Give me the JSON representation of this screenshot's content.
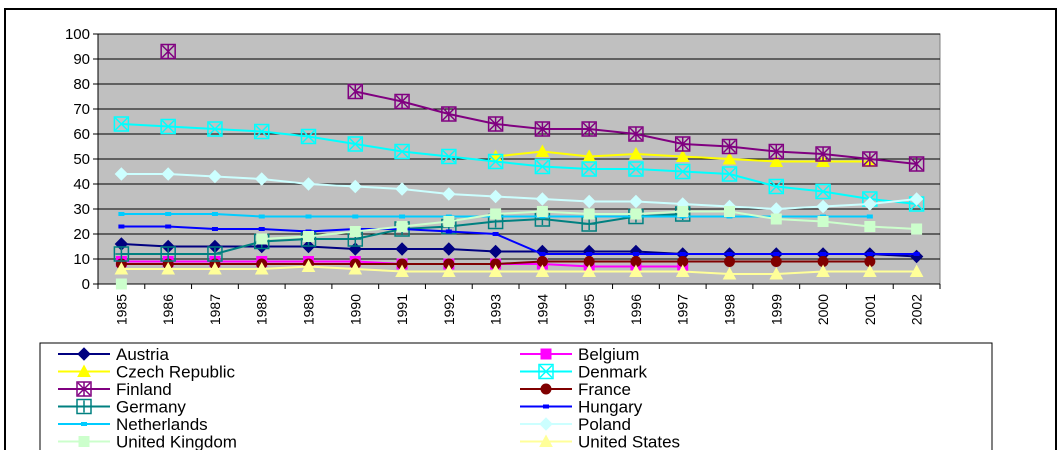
{
  "chart_data": {
    "type": "line",
    "title": "",
    "xlabel": "",
    "ylabel": "",
    "ylim": [
      0,
      100
    ],
    "yticks": [
      0,
      10,
      20,
      30,
      40,
      50,
      60,
      70,
      80,
      90,
      100
    ],
    "x": [
      "1985",
      "1986",
      "1987",
      "1988",
      "1989",
      "1990",
      "1991",
      "1992",
      "1993",
      "1994",
      "1995",
      "1996",
      "1997",
      "1998",
      "1999",
      "2000",
      "2001",
      "2002"
    ],
    "grid": true,
    "plot_background": "#c0c0c0",
    "legend_placement": "bottom",
    "series": [
      {
        "name": "Austria",
        "color": "#000080",
        "marker": "diamond",
        "values": [
          16,
          15,
          15,
          15,
          15,
          14,
          14,
          14,
          13,
          13,
          13,
          13,
          12,
          12,
          12,
          12,
          12,
          11
        ]
      },
      {
        "name": "Belgium",
        "color": "#ff00ff",
        "marker": "square",
        "values": [
          9,
          9,
          9,
          9,
          9,
          9,
          8,
          8,
          8,
          8,
          7,
          7,
          7,
          null,
          null,
          null,
          null,
          null
        ]
      },
      {
        "name": "Czech Republic",
        "color": "#ffff00",
        "marker": "triangle",
        "values": [
          null,
          null,
          null,
          null,
          null,
          null,
          null,
          null,
          51,
          53,
          51,
          52,
          51,
          50,
          49,
          49,
          49,
          null
        ]
      },
      {
        "name": "Denmark",
        "color": "#00ffff",
        "marker": "x-box",
        "values": [
          64,
          63,
          62,
          61,
          59,
          56,
          53,
          51,
          49,
          47,
          46,
          46,
          45,
          44,
          39,
          37,
          34,
          32
        ]
      },
      {
        "name": "Finland",
        "color": "#800080",
        "marker": "star-box",
        "values": [
          null,
          93,
          null,
          null,
          null,
          77,
          73,
          68,
          64,
          62,
          62,
          60,
          56,
          55,
          53,
          52,
          50,
          48
        ]
      },
      {
        "name": "France",
        "color": "#800000",
        "marker": "circle",
        "values": [
          8,
          8,
          8,
          8,
          8,
          8,
          8,
          8,
          8,
          9,
          9,
          9,
          9,
          9,
          9,
          9,
          9,
          null
        ]
      },
      {
        "name": "Germany",
        "color": "#008080",
        "marker": "plus-box",
        "values": [
          12,
          12,
          12,
          17,
          18,
          18,
          22,
          23,
          25,
          26,
          24,
          27,
          28,
          null,
          null,
          null,
          null,
          null
        ]
      },
      {
        "name": "Hungary",
        "color": "#0000ff",
        "marker": "dash",
        "values": [
          23,
          23,
          22,
          22,
          21,
          22,
          22,
          21,
          20,
          12,
          12,
          12,
          12,
          12,
          12,
          12,
          12,
          12
        ]
      },
      {
        "name": "Netherlands",
        "color": "#00ccff",
        "marker": "dash",
        "values": [
          28,
          28,
          28,
          27,
          27,
          27,
          27,
          27,
          27,
          27,
          27,
          27,
          27,
          27,
          27,
          27,
          27,
          null
        ]
      },
      {
        "name": "Poland",
        "color": "#ccffff",
        "marker": "diamond",
        "values": [
          44,
          44,
          43,
          42,
          40,
          39,
          38,
          36,
          35,
          34,
          33,
          33,
          32,
          31,
          30,
          31,
          32,
          34
        ]
      },
      {
        "name": "United Kingdom",
        "color": "#ccffcc",
        "marker": "square",
        "values": [
          0,
          null,
          null,
          18,
          19,
          21,
          23,
          25,
          28,
          29,
          28,
          28,
          29,
          29,
          26,
          25,
          23,
          22
        ]
      },
      {
        "name": "United States",
        "color": "#ffff99",
        "marker": "triangle",
        "values": [
          6,
          6,
          6,
          6,
          7,
          6,
          5,
          5,
          5,
          5,
          5,
          5,
          5,
          4,
          4,
          5,
          5,
          5
        ]
      }
    ]
  }
}
